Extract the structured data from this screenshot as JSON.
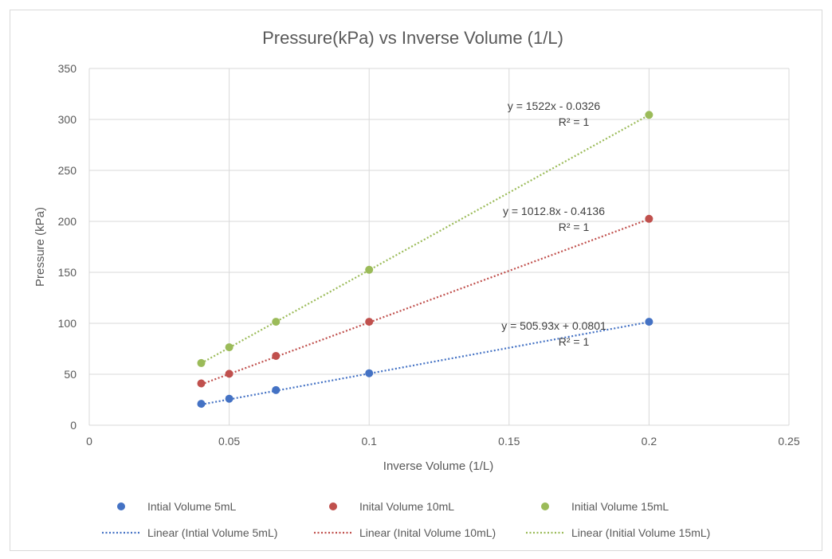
{
  "chart_data": {
    "type": "scatter",
    "title": "Pressure(kPa) vs Inverse Volume (1/L)",
    "xlabel": "Inverse Volume (1/L)",
    "ylabel": "Pressure (kPa)",
    "xlim": [
      0,
      0.25
    ],
    "ylim": [
      0,
      350
    ],
    "x_ticks": [
      0,
      0.05,
      0.1,
      0.15,
      0.2,
      0.25
    ],
    "x_tick_labels": [
      "0",
      "0.05",
      "0.1",
      "0.15",
      "0.2",
      "0.25"
    ],
    "y_ticks": [
      0,
      50,
      100,
      150,
      200,
      250,
      300,
      350
    ],
    "y_tick_labels": [
      "0",
      "50",
      "100",
      "150",
      "200",
      "250",
      "300",
      "350"
    ],
    "grid": true,
    "legend_position": "bottom",
    "series": [
      {
        "name": "Intial Volume 5mL",
        "color": "#4472c4",
        "x": [
          0.04,
          0.05,
          0.0667,
          0.1,
          0.2
        ],
        "y": [
          21,
          26,
          34.5,
          51,
          101.5
        ],
        "trendline": {
          "name": "Linear (Intial Volume 5mL)",
          "slope": 505.93,
          "intercept": 0.0801,
          "equation": "y = 505.93x + 0.0801",
          "r2": "R² = 1"
        }
      },
      {
        "name": "Inital Volume 10mL",
        "color": "#c0504d",
        "x": [
          0.04,
          0.05,
          0.0667,
          0.1,
          0.2
        ],
        "y": [
          41,
          50.5,
          68,
          101.5,
          202.5
        ],
        "trendline": {
          "name": "Linear (Inital Volume 10mL)",
          "slope": 1012.8,
          "intercept": -0.4136,
          "equation": "y = 1012.8x - 0.4136",
          "r2": "R² = 1"
        }
      },
      {
        "name": "Initial Volume 15mL",
        "color": "#9bbb59",
        "x": [
          0.04,
          0.05,
          0.0667,
          0.1,
          0.2
        ],
        "y": [
          61,
          76.5,
          101.5,
          152.5,
          304.5
        ],
        "trendline": {
          "name": "Linear (Initial Volume 15mL)",
          "slope": 1522,
          "intercept": -0.0326,
          "equation": "y = 1522x - 0.0326",
          "r2": "R² = 1"
        }
      }
    ]
  }
}
